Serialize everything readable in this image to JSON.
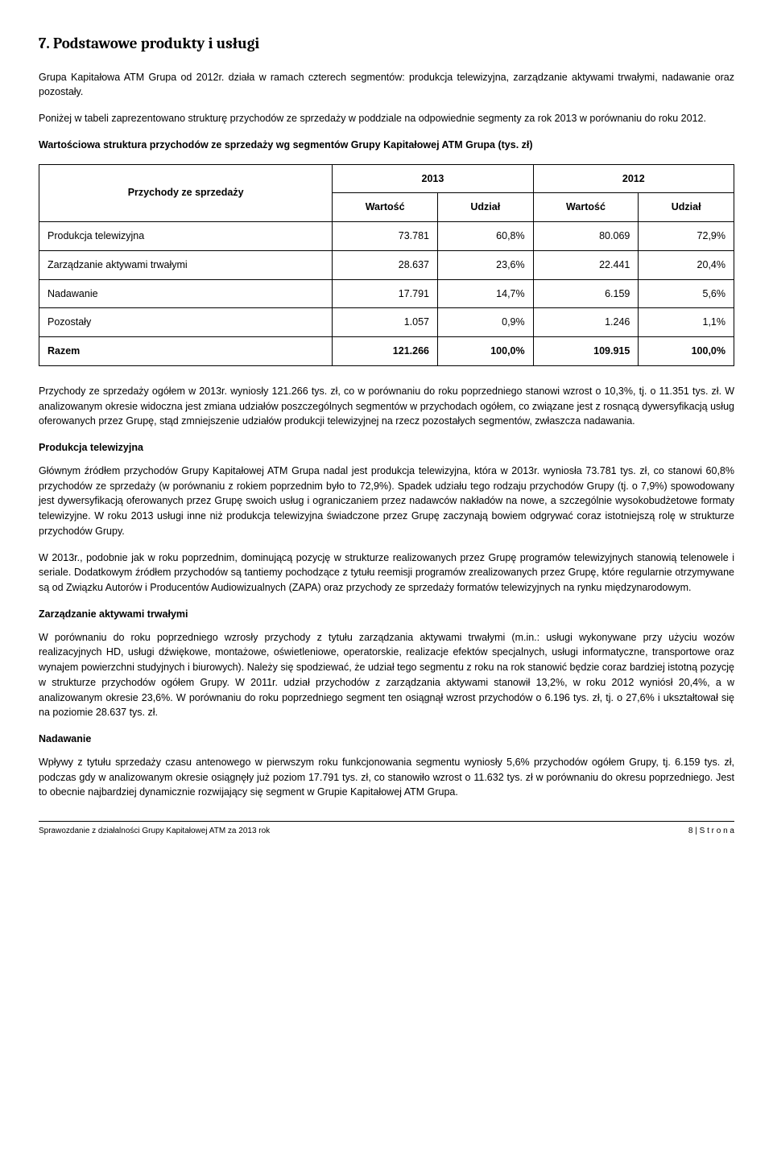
{
  "section_title": "7. Podstawowe produkty i usługi",
  "intro_p1": "Grupa Kapitałowa ATM Grupa od 2012r. działa w ramach czterech segmentów: produkcja telewizyjna, zarządzanie aktywami trwałymi, nadawanie oraz pozostały.",
  "intro_p2": "Poniżej w tabeli zaprezentowano strukturę przychodów ze sprzedaży w poddziale na odpowiednie segmenty za rok 2013 w porównaniu do roku 2012.",
  "table_caption": "Wartościowa struktura przychodów ze sprzedaży wg segmentów Grupy Kapitałowej ATM Grupa (tys. zł)",
  "table": {
    "rowhead": "Przychody ze sprzedaży",
    "years": [
      "2013",
      "2012"
    ],
    "subheads": [
      "Wartość",
      "Udział",
      "Wartość",
      "Udział"
    ],
    "rows": [
      {
        "label": "Produkcja telewizyjna",
        "v": [
          "73.781",
          "60,8%",
          "80.069",
          "72,9%"
        ]
      },
      {
        "label": "Zarządzanie aktywami trwałymi",
        "v": [
          "28.637",
          "23,6%",
          "22.441",
          "20,4%"
        ]
      },
      {
        "label": "Nadawanie",
        "v": [
          "17.791",
          "14,7%",
          "6.159",
          "5,6%"
        ]
      },
      {
        "label": "Pozostały",
        "v": [
          "1.057",
          "0,9%",
          "1.246",
          "1,1%"
        ]
      }
    ],
    "total": {
      "label": "Razem",
      "v": [
        "121.266",
        "100,0%",
        "109.915",
        "100,0%"
      ]
    }
  },
  "para_after_table": "Przychody ze sprzedaży ogółem w 2013r. wyniosły 121.266 tys. zł, co w porównaniu do roku poprzedniego stanowi wzrost o 10,3%, tj. o 11.351 tys. zł. W analizowanym okresie widoczna jest zmiana udziałów poszczególnych segmentów w przychodach ogółem, co związane jest z rosnącą dywersyfikacją usług oferowanych przez Grupę, stąd zmniejszenie udziałów produkcji telewizyjnej na rzecz pozostałych segmentów, zwłaszcza nadawania.",
  "sub1_title": "Produkcja telewizyjna",
  "sub1_p1": "Głównym źródłem przychodów Grupy Kapitałowej ATM Grupa nadal jest produkcja telewizyjna, która w 2013r. wyniosła 73.781 tys. zł, co stanowi 60,8% przychodów ze sprzedaży (w porównaniu z rokiem poprzednim było to 72,9%). Spadek udziału tego rodzaju przychodów Grupy (tj. o 7,9%) spowodowany jest dywersyfikacją oferowanych przez Grupę swoich usług i ograniczaniem przez nadawców nakładów na nowe, a szczególnie wysokobudżetowe formaty telewizyjne. W roku 2013 usługi inne niż produkcja telewizyjna świadczone przez Grupę zaczynają bowiem odgrywać coraz istotniejszą rolę w strukturze przychodów Grupy.",
  "sub1_p2": "W 2013r., podobnie jak w roku poprzednim, dominującą pozycję w strukturze realizowanych przez Grupę programów telewizyjnych stanowią telenowele i seriale. Dodatkowym źródłem przychodów są tantiemy pochodzące z tytułu reemisji programów zrealizowanych przez Grupę, które regularnie otrzymywane są od Związku Autorów i Producentów Audiowizualnych (ZAPA) oraz przychody ze sprzedaży formatów telewizyjnych na rynku międzynarodowym.",
  "sub2_title": "Zarządzanie aktywami trwałymi",
  "sub2_p1": "W porównaniu do roku poprzedniego wzrosły przychody z tytułu zarządzania aktywami trwałymi (m.in.: usługi wykonywane przy użyciu wozów realizacyjnych HD, usługi dźwiękowe, montażowe, oświetleniowe, operatorskie, realizacje efektów specjalnych, usługi informatyczne, transportowe oraz wynajem powierzchni studyjnych i biurowych). Należy się spodziewać, że udział tego segmentu z roku na rok stanowić będzie coraz bardziej istotną pozycję w strukturze przychodów ogółem Grupy. W 2011r. udział przychodów z zarządzania aktywami stanowił 13,2%, w roku 2012 wyniósł 20,4%, a w analizowanym okresie 23,6%. W porównaniu do roku poprzedniego segment ten osiągnął wzrost przychodów o 6.196 tys. zł, tj. o 27,6% i ukształtował się na poziomie 28.637 tys. zł.",
  "sub3_title": "Nadawanie",
  "sub3_p1": "Wpływy z tytułu sprzedaży czasu antenowego w pierwszym roku funkcjonowania segmentu wyniosły 5,6% przychodów ogółem Grupy, tj. 6.159 tys. zł, podczas gdy w analizowanym okresie osiągnęły już poziom 17.791 tys. zł, co stanowiło wzrost o 11.632 tys. zł w porównaniu do okresu poprzedniego. Jest to obecnie najbardziej dynamicznie rozwijający się segment w Grupie Kapitałowej ATM Grupa.",
  "footer_left": "Sprawozdanie z działalności Grupy Kapitałowej ATM za 2013 rok",
  "footer_right_page": "8 | ",
  "footer_right_word": "S t r o n a"
}
